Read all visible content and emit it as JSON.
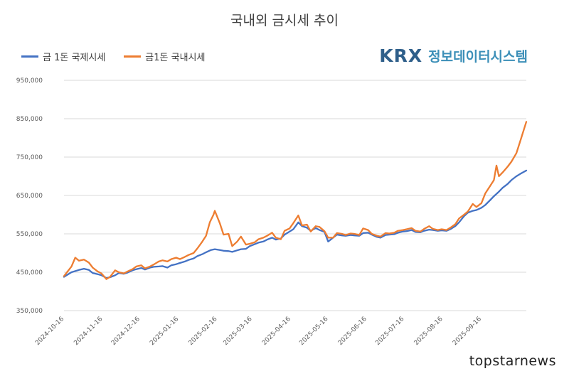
{
  "header": {
    "title": "국내외 금시세 추이"
  },
  "brand": {
    "logo": "KRX",
    "text": "정보데이터시스템"
  },
  "watermark": "topstarnews",
  "colors": {
    "series_intl": "#4472c4",
    "series_dom": "#ed7d31",
    "grid": "#d9d9d9"
  },
  "chart_data": {
    "type": "line",
    "title": "국내외 금시세 추이",
    "ylim": [
      350000,
      950000
    ],
    "yticks": [
      "350,000",
      "450,000",
      "550,000",
      "650,000",
      "750,000",
      "850,000",
      "950,000"
    ],
    "ytick_values": [
      350000,
      450000,
      550000,
      650000,
      750000,
      850000,
      950000
    ],
    "xticks": [
      "2024-10-16",
      "2024-11-16",
      "2024-12-16",
      "2025-01-16",
      "2025-02-16",
      "2025-03-16",
      "2025-04-16",
      "2025-05-16",
      "2025-06-16",
      "2025-07-16",
      "2025-08-16",
      "2025-09-16"
    ],
    "x_start": "2024-10-16",
    "x_end": "2025-10-22",
    "grid": true,
    "legend_position": "top-left",
    "series": [
      {
        "name": "금 1돈 국제시세",
        "color": "#4472c4",
        "points": [
          [
            "2024-10-16",
            438000
          ],
          [
            "2024-10-22",
            450000
          ],
          [
            "2024-10-28",
            456000
          ],
          [
            "2024-11-01",
            459000
          ],
          [
            "2024-11-05",
            456000
          ],
          [
            "2024-11-08",
            448000
          ],
          [
            "2024-11-12",
            445000
          ],
          [
            "2024-11-15",
            442000
          ],
          [
            "2024-11-19",
            435000
          ],
          [
            "2024-11-22",
            437000
          ],
          [
            "2024-11-26",
            442000
          ],
          [
            "2024-11-29",
            448000
          ],
          [
            "2024-12-03",
            446000
          ],
          [
            "2024-12-06",
            449000
          ],
          [
            "2024-12-10",
            455000
          ],
          [
            "2024-12-13",
            458000
          ],
          [
            "2024-12-17",
            461000
          ],
          [
            "2024-12-20",
            457000
          ],
          [
            "2024-12-24",
            462000
          ],
          [
            "2024-12-27",
            464000
          ],
          [
            "2024-12-31",
            465000
          ],
          [
            "2025-01-03",
            466000
          ],
          [
            "2025-01-07",
            462000
          ],
          [
            "2025-01-10",
            468000
          ],
          [
            "2025-01-14",
            471000
          ],
          [
            "2025-01-17",
            474000
          ],
          [
            "2025-01-21",
            478000
          ],
          [
            "2025-01-24",
            482000
          ],
          [
            "2025-01-28",
            486000
          ],
          [
            "2025-01-31",
            492000
          ],
          [
            "2025-02-04",
            497000
          ],
          [
            "2025-02-07",
            502000
          ],
          [
            "2025-02-11",
            508000
          ],
          [
            "2025-02-14",
            510000
          ],
          [
            "2025-02-18",
            508000
          ],
          [
            "2025-02-21",
            506000
          ],
          [
            "2025-02-25",
            505000
          ],
          [
            "2025-02-28",
            503000
          ],
          [
            "2025-03-04",
            507000
          ],
          [
            "2025-03-07",
            510000
          ],
          [
            "2025-03-11",
            511000
          ],
          [
            "2025-03-14",
            518000
          ],
          [
            "2025-03-18",
            523000
          ],
          [
            "2025-03-21",
            527000
          ],
          [
            "2025-03-25",
            530000
          ],
          [
            "2025-03-28",
            535000
          ],
          [
            "2025-04-01",
            540000
          ],
          [
            "2025-04-04",
            535000
          ],
          [
            "2025-04-08",
            538000
          ],
          [
            "2025-04-11",
            548000
          ],
          [
            "2025-04-15",
            556000
          ],
          [
            "2025-04-18",
            562000
          ],
          [
            "2025-04-22",
            580000
          ],
          [
            "2025-04-25",
            570000
          ],
          [
            "2025-04-29",
            566000
          ],
          [
            "2025-05-02",
            558000
          ],
          [
            "2025-05-06",
            565000
          ],
          [
            "2025-05-09",
            560000
          ],
          [
            "2025-05-13",
            555000
          ],
          [
            "2025-05-16",
            530000
          ],
          [
            "2025-05-20",
            540000
          ],
          [
            "2025-05-23",
            548000
          ],
          [
            "2025-05-27",
            546000
          ],
          [
            "2025-05-30",
            545000
          ],
          [
            "2025-06-03",
            547000
          ],
          [
            "2025-06-06",
            546000
          ],
          [
            "2025-06-10",
            545000
          ],
          [
            "2025-06-13",
            552000
          ],
          [
            "2025-06-17",
            553000
          ],
          [
            "2025-06-20",
            548000
          ],
          [
            "2025-06-24",
            542000
          ],
          [
            "2025-06-27",
            540000
          ],
          [
            "2025-07-01",
            547000
          ],
          [
            "2025-07-04",
            548000
          ],
          [
            "2025-07-08",
            549000
          ],
          [
            "2025-07-11",
            553000
          ],
          [
            "2025-07-15",
            556000
          ],
          [
            "2025-07-18",
            557000
          ],
          [
            "2025-07-22",
            560000
          ],
          [
            "2025-07-25",
            555000
          ],
          [
            "2025-07-29",
            554000
          ],
          [
            "2025-08-01",
            558000
          ],
          [
            "2025-08-05",
            561000
          ],
          [
            "2025-08-08",
            560000
          ],
          [
            "2025-08-12",
            558000
          ],
          [
            "2025-08-15",
            559000
          ],
          [
            "2025-08-19",
            558000
          ],
          [
            "2025-08-22",
            562000
          ],
          [
            "2025-08-26",
            570000
          ],
          [
            "2025-08-29",
            580000
          ],
          [
            "2025-09-02",
            596000
          ],
          [
            "2025-09-05",
            605000
          ],
          [
            "2025-09-09",
            610000
          ],
          [
            "2025-09-12",
            612000
          ],
          [
            "2025-09-16",
            618000
          ],
          [
            "2025-09-19",
            625000
          ],
          [
            "2025-09-23",
            638000
          ],
          [
            "2025-09-26",
            648000
          ],
          [
            "2025-09-30",
            660000
          ],
          [
            "2025-10-03",
            670000
          ],
          [
            "2025-10-07",
            680000
          ],
          [
            "2025-10-10",
            690000
          ],
          [
            "2025-10-14",
            700000
          ],
          [
            "2025-10-17",
            706000
          ],
          [
            "2025-10-22",
            715000
          ]
        ]
      },
      {
        "name": "금1돈 국내시세",
        "color": "#ed7d31",
        "points": [
          [
            "2024-10-16",
            440000
          ],
          [
            "2024-10-22",
            465000
          ],
          [
            "2024-10-25",
            488000
          ],
          [
            "2024-10-28",
            480000
          ],
          [
            "2024-11-01",
            483000
          ],
          [
            "2024-11-05",
            475000
          ],
          [
            "2024-11-08",
            462000
          ],
          [
            "2024-11-12",
            452000
          ],
          [
            "2024-11-15",
            447000
          ],
          [
            "2024-11-19",
            432000
          ],
          [
            "2024-11-22",
            438000
          ],
          [
            "2024-11-26",
            455000
          ],
          [
            "2024-11-29",
            450000
          ],
          [
            "2024-12-03",
            447000
          ],
          [
            "2024-12-06",
            452000
          ],
          [
            "2024-12-10",
            458000
          ],
          [
            "2024-12-13",
            465000
          ],
          [
            "2024-12-17",
            468000
          ],
          [
            "2024-12-20",
            460000
          ],
          [
            "2024-12-24",
            465000
          ],
          [
            "2024-12-27",
            470000
          ],
          [
            "2024-12-31",
            478000
          ],
          [
            "2025-01-03",
            481000
          ],
          [
            "2025-01-07",
            478000
          ],
          [
            "2025-01-10",
            484000
          ],
          [
            "2025-01-14",
            488000
          ],
          [
            "2025-01-17",
            484000
          ],
          [
            "2025-01-21",
            490000
          ],
          [
            "2025-01-24",
            495000
          ],
          [
            "2025-01-28",
            500000
          ],
          [
            "2025-01-31",
            512000
          ],
          [
            "2025-02-04",
            530000
          ],
          [
            "2025-02-07",
            545000
          ],
          [
            "2025-02-10",
            580000
          ],
          [
            "2025-02-13",
            600000
          ],
          [
            "2025-02-14",
            610000
          ],
          [
            "2025-02-18",
            578000
          ],
          [
            "2025-02-21",
            548000
          ],
          [
            "2025-02-25",
            550000
          ],
          [
            "2025-02-28",
            518000
          ],
          [
            "2025-03-04",
            530000
          ],
          [
            "2025-03-07",
            543000
          ],
          [
            "2025-03-11",
            522000
          ],
          [
            "2025-03-14",
            524000
          ],
          [
            "2025-03-18",
            528000
          ],
          [
            "2025-03-21",
            536000
          ],
          [
            "2025-03-25",
            540000
          ],
          [
            "2025-03-28",
            545000
          ],
          [
            "2025-04-01",
            553000
          ],
          [
            "2025-04-04",
            540000
          ],
          [
            "2025-04-08",
            536000
          ],
          [
            "2025-04-11",
            558000
          ],
          [
            "2025-04-15",
            564000
          ],
          [
            "2025-04-18",
            578000
          ],
          [
            "2025-04-22",
            598000
          ],
          [
            "2025-04-25",
            572000
          ],
          [
            "2025-04-29",
            574000
          ],
          [
            "2025-05-02",
            556000
          ],
          [
            "2025-05-06",
            570000
          ],
          [
            "2025-05-09",
            568000
          ],
          [
            "2025-05-13",
            557000
          ],
          [
            "2025-05-16",
            540000
          ],
          [
            "2025-05-20",
            540000
          ],
          [
            "2025-05-23",
            552000
          ],
          [
            "2025-05-27",
            550000
          ],
          [
            "2025-05-30",
            547000
          ],
          [
            "2025-06-03",
            551000
          ],
          [
            "2025-06-06",
            550000
          ],
          [
            "2025-06-10",
            547000
          ],
          [
            "2025-06-13",
            564000
          ],
          [
            "2025-06-17",
            560000
          ],
          [
            "2025-06-20",
            550000
          ],
          [
            "2025-06-24",
            545000
          ],
          [
            "2025-06-27",
            543000
          ],
          [
            "2025-07-01",
            552000
          ],
          [
            "2025-07-04",
            551000
          ],
          [
            "2025-07-08",
            553000
          ],
          [
            "2025-07-11",
            558000
          ],
          [
            "2025-07-15",
            560000
          ],
          [
            "2025-07-18",
            562000
          ],
          [
            "2025-07-22",
            565000
          ],
          [
            "2025-07-25",
            558000
          ],
          [
            "2025-07-29",
            556000
          ],
          [
            "2025-08-01",
            563000
          ],
          [
            "2025-08-05",
            570000
          ],
          [
            "2025-08-08",
            563000
          ],
          [
            "2025-08-12",
            560000
          ],
          [
            "2025-08-15",
            562000
          ],
          [
            "2025-08-19",
            560000
          ],
          [
            "2025-08-22",
            566000
          ],
          [
            "2025-08-26",
            575000
          ],
          [
            "2025-08-29",
            590000
          ],
          [
            "2025-09-02",
            600000
          ],
          [
            "2025-09-05",
            608000
          ],
          [
            "2025-09-09",
            628000
          ],
          [
            "2025-09-12",
            620000
          ],
          [
            "2025-09-16",
            630000
          ],
          [
            "2025-09-19",
            655000
          ],
          [
            "2025-09-23",
            675000
          ],
          [
            "2025-09-26",
            690000
          ],
          [
            "2025-09-28",
            728000
          ],
          [
            "2025-09-30",
            700000
          ],
          [
            "2025-10-03",
            710000
          ],
          [
            "2025-10-07",
            725000
          ],
          [
            "2025-10-10",
            738000
          ],
          [
            "2025-10-14",
            760000
          ],
          [
            "2025-10-17",
            790000
          ],
          [
            "2025-10-22",
            842000
          ]
        ]
      }
    ]
  }
}
